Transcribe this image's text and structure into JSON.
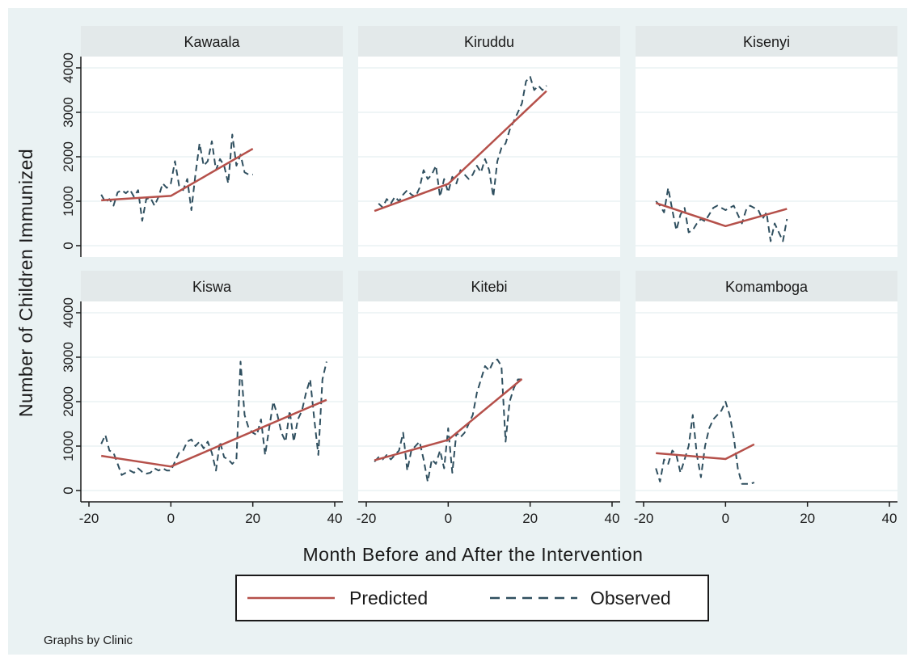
{
  "chart_data": {
    "type": "line",
    "ylabel": "Number of Children Immunized",
    "xlabel": "Month Before and After the Intervention",
    "note": "Graphs by Clinic",
    "xlim": [
      -20,
      40
    ],
    "ylim": [
      0,
      4000
    ],
    "x_ticks": [
      "-20",
      "0",
      "20",
      "40"
    ],
    "y_ticks": [
      "0",
      "1000",
      "2000",
      "3000",
      "4000"
    ],
    "grid": true,
    "legend": {
      "position": "bottom",
      "entries": [
        {
          "label": "Predicted",
          "color": "#b5504a",
          "style": "solid"
        },
        {
          "label": "Observed",
          "color": "#2f4f5f",
          "style": "dashed"
        }
      ]
    },
    "panels": [
      {
        "clinic": "Kawaala",
        "series": [
          {
            "name": "Predicted",
            "x": [
              -17,
              0,
              20
            ],
            "y": [
              1020,
              1120,
              2180
            ]
          },
          {
            "name": "Observed",
            "x": [
              -17,
              -16,
              -15,
              -14,
              -13,
              -12,
              -11,
              -10,
              -9,
              -8,
              -7,
              -6,
              -5,
              -4,
              -3,
              -2,
              -1,
              0,
              1,
              2,
              3,
              4,
              5,
              6,
              7,
              8,
              9,
              10,
              11,
              12,
              13,
              14,
              15,
              16,
              17,
              18,
              19,
              20
            ],
            "y": [
              1150,
              980,
              1050,
              900,
              1200,
              1250,
              1180,
              1260,
              1100,
              1250,
              560,
              1050,
              1080,
              900,
              1100,
              1400,
              1300,
              1400,
              1900,
              1350,
              1250,
              1500,
              800,
              1600,
              2300,
              1800,
              1900,
              2350,
              1700,
              1950,
              1800,
              1400,
              2500,
              1800,
              2050,
              1650,
              1600,
              1600
            ]
          }
        ]
      },
      {
        "clinic": "Kiruddu",
        "series": [
          {
            "name": "Predicted",
            "x": [
              -18,
              0,
              24
            ],
            "y": [
              780,
              1390,
              3480
            ]
          },
          {
            "name": "Observed",
            "x": [
              -17,
              -16,
              -15,
              -14,
              -13,
              -12,
              -11,
              -10,
              -9,
              -8,
              -7,
              -6,
              -5,
              -4,
              -3,
              -2,
              -1,
              0,
              1,
              2,
              3,
              4,
              5,
              6,
              7,
              8,
              9,
              10,
              11,
              12,
              13,
              14,
              15,
              16,
              17,
              18,
              19,
              20,
              21,
              22,
              23,
              24
            ],
            "y": [
              950,
              860,
              1050,
              950,
              1100,
              1000,
              1150,
              1250,
              1150,
              1100,
              1300,
              1700,
              1500,
              1600,
              1800,
              1100,
              1500,
              1200,
              1550,
              1400,
              1700,
              1600,
              1500,
              1600,
              1800,
              1650,
              1950,
              1700,
              1100,
              1900,
              2200,
              2300,
              2600,
              2800,
              3000,
              3200,
              3700,
              3800,
              3500,
              3600,
              3500,
              3600
            ]
          }
        ]
      },
      {
        "clinic": "Kisenyi",
        "series": [
          {
            "name": "Predicted",
            "x": [
              -17,
              0,
              15
            ],
            "y": [
              960,
              440,
              830
            ]
          },
          {
            "name": "Observed",
            "x": [
              -17,
              -16,
              -15,
              -14,
              -13,
              -12,
              -11,
              -10,
              -9,
              -8,
              -7,
              -6,
              -5,
              -4,
              -3,
              -2,
              -1,
              0,
              1,
              2,
              3,
              4,
              5,
              6,
              7,
              8,
              9,
              10,
              11,
              12,
              13,
              14,
              15
            ],
            "y": [
              1000,
              900,
              750,
              1300,
              800,
              350,
              700,
              850,
              300,
              350,
              500,
              600,
              550,
              700,
              850,
              900,
              850,
              800,
              850,
              900,
              700,
              500,
              800,
              900,
              850,
              800,
              600,
              750,
              100,
              500,
              300,
              100,
              600
            ]
          }
        ]
      },
      {
        "clinic": "Kiswa",
        "series": [
          {
            "name": "Predicted",
            "x": [
              -17,
              0,
              38
            ],
            "y": [
              780,
              540,
              2040
            ]
          },
          {
            "name": "Observed",
            "x": [
              -17,
              -16,
              -15,
              -14,
              -13,
              -12,
              -11,
              -10,
              -9,
              -8,
              -7,
              -6,
              -5,
              -4,
              -3,
              -2,
              -1,
              0,
              1,
              2,
              3,
              4,
              5,
              6,
              7,
              8,
              9,
              10,
              11,
              12,
              13,
              14,
              15,
              16,
              17,
              18,
              19,
              20,
              21,
              22,
              23,
              24,
              25,
              26,
              27,
              28,
              29,
              30,
              31,
              32,
              33,
              34,
              35,
              36,
              37,
              38
            ],
            "y": [
              1050,
              1250,
              900,
              850,
              600,
              350,
              400,
              450,
              400,
              500,
              420,
              380,
              400,
              500,
              450,
              500,
              450,
              450,
              650,
              850,
              900,
              1100,
              1150,
              1000,
              1100,
              950,
              1100,
              850,
              450,
              1100,
              750,
              700,
              600,
              700,
              2900,
              1700,
              1400,
              1300,
              1250,
              1600,
              800,
              1400,
              2000,
              1700,
              1300,
              1100,
              1800,
              1100,
              1600,
              1800,
              2200,
              2500,
              1600,
              800,
              2500,
              2900
            ]
          }
        ]
      },
      {
        "clinic": "Kitebi",
        "series": [
          {
            "name": "Predicted",
            "x": [
              -18,
              0,
              18
            ],
            "y": [
              680,
              1140,
              2510
            ]
          },
          {
            "name": "Observed",
            "x": [
              -18,
              -17,
              -16,
              -15,
              -14,
              -13,
              -12,
              -11,
              -10,
              -9,
              -8,
              -7,
              -6,
              -5,
              -4,
              -3,
              -2,
              -1,
              0,
              1,
              2,
              3,
              4,
              5,
              6,
              7,
              8,
              9,
              10,
              11,
              12,
              13,
              14,
              15,
              16,
              17,
              18
            ],
            "y": [
              650,
              750,
              700,
              800,
              700,
              800,
              900,
              1300,
              450,
              900,
              1000,
              1100,
              700,
              200,
              700,
              600,
              900,
              500,
              1400,
              400,
              1300,
              1200,
              1300,
              1500,
              1700,
              2200,
              2500,
              2800,
              2700,
              2900,
              2950,
              2800,
              1100,
              2000,
              2300,
              2500,
              2500
            ]
          }
        ]
      },
      {
        "clinic": "Komamboga",
        "series": [
          {
            "name": "Predicted",
            "x": [
              -17,
              0,
              7
            ],
            "y": [
              840,
              710,
              1040
            ]
          },
          {
            "name": "Observed",
            "x": [
              -17,
              -16,
              -15,
              -14,
              -13,
              -12,
              -11,
              -10,
              -9,
              -8,
              -7,
              -6,
              -5,
              -4,
              -3,
              -2,
              -1,
              0,
              1,
              2,
              3,
              4,
              5,
              6,
              7
            ],
            "y": [
              500,
              200,
              700,
              600,
              900,
              800,
              400,
              700,
              1000,
              1700,
              800,
              300,
              1000,
              1400,
              1600,
              1700,
              1800,
              2000,
              1700,
              1200,
              500,
              150,
              150,
              150,
              180
            ]
          }
        ]
      }
    ]
  }
}
